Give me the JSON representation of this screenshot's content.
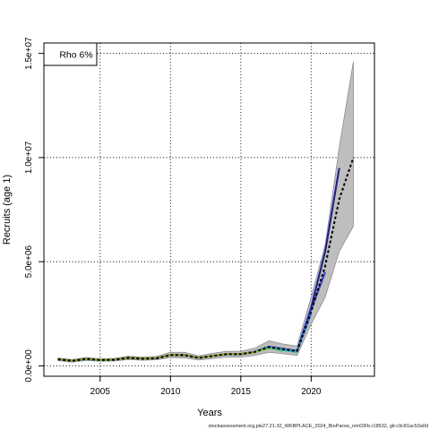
{
  "chart_data": {
    "type": "line",
    "xlabel": "Years",
    "ylabel": "Recruits (age 1)",
    "xlim": [
      2001,
      2024.5
    ],
    "ylim": [
      -500000,
      15500000
    ],
    "x_ticks": [
      2005,
      2010,
      2015,
      2020
    ],
    "x_tick_labels": [
      "2005",
      "2010",
      "2015",
      "2020"
    ],
    "y_ticks": [
      0,
      5000000,
      10000000,
      15000000
    ],
    "y_tick_labels": [
      "0.0e+00",
      "5.0e+06",
      "1.0e+07",
      "1.5e+07"
    ],
    "grid": true,
    "legend_text": "Rho 6%",
    "legend_position": "top-left",
    "footer_text": "stockassessment.org,ple27.21-32_WKBPLACE_2024_BioParsw_nm02Fb,r18532, git:c9c81ac53a0d",
    "colors": {
      "band": "#bebebe",
      "band_edge": "#8c8c8c",
      "base": "#000000",
      "peels": [
        "#1a1a8a",
        "#3b3bd0",
        "#2b8ad6",
        "#22b8b0",
        "#3cb878",
        "#8bc34a",
        "#a0a020"
      ]
    },
    "confidence_band": {
      "x": [
        2002,
        2003,
        2004,
        2005,
        2006,
        2007,
        2008,
        2009,
        2010,
        2011,
        2012,
        2013,
        2014,
        2015,
        2016,
        2017,
        2018,
        2019,
        2020,
        2021,
        2022,
        2023
      ],
      "lower": [
        250000,
        180000,
        260000,
        220000,
        230000,
        300000,
        270000,
        290000,
        400000,
        380000,
        280000,
        350000,
        420000,
        420000,
        500000,
        650000,
        580000,
        500000,
        2000000,
        3300000,
        5500000,
        6700000
      ],
      "upper": [
        380000,
        300000,
        400000,
        340000,
        360000,
        460000,
        420000,
        450000,
        650000,
        650000,
        480000,
        600000,
        700000,
        700000,
        850000,
        1200000,
        1050000,
        950000,
        3300000,
        5800000,
        10500000,
        14600000
      ]
    },
    "base_series": {
      "name": "",
      "x": [
        2002,
        2003,
        2004,
        2005,
        2006,
        2007,
        2008,
        2009,
        2010,
        2011,
        2012,
        2013,
        2014,
        2015,
        2016,
        2017,
        2018,
        2019,
        2020,
        2021,
        2022,
        2023
      ],
      "values": [
        310000,
        240000,
        330000,
        280000,
        290000,
        380000,
        340000,
        360000,
        520000,
        510000,
        380000,
        470000,
        560000,
        560000,
        670000,
        900000,
        800000,
        700000,
        2600000,
        4800000,
        8000000,
        10000000
      ]
    },
    "series": [
      {
        "name": "",
        "x": [
          2002,
          2003,
          2004,
          2005,
          2006,
          2007,
          2008,
          2009,
          2010,
          2011,
          2012,
          2013,
          2014,
          2015,
          2016,
          2017,
          2018,
          2019,
          2020,
          2021,
          2022
        ],
        "values": [
          320000,
          250000,
          340000,
          290000,
          300000,
          390000,
          350000,
          370000,
          530000,
          520000,
          390000,
          480000,
          570000,
          570000,
          680000,
          920000,
          820000,
          720000,
          2800000,
          5500000,
          9500000
        ]
      },
      {
        "name": "",
        "x": [
          2002,
          2003,
          2004,
          2005,
          2006,
          2007,
          2008,
          2009,
          2010,
          2011,
          2012,
          2013,
          2014,
          2015,
          2016,
          2017,
          2018,
          2019,
          2020,
          2021
        ],
        "values": [
          315000,
          245000,
          335000,
          285000,
          295000,
          385000,
          345000,
          365000,
          525000,
          515000,
          385000,
          475000,
          565000,
          565000,
          675000,
          910000,
          810000,
          710000,
          2700000,
          4500000
        ]
      },
      {
        "name": "",
        "x": [
          2002,
          2003,
          2004,
          2005,
          2006,
          2007,
          2008,
          2009,
          2010,
          2011,
          2012,
          2013,
          2014,
          2015,
          2016,
          2017,
          2018,
          2019,
          2020
        ],
        "values": [
          300000,
          235000,
          325000,
          275000,
          285000,
          375000,
          335000,
          355000,
          510000,
          500000,
          375000,
          465000,
          550000,
          550000,
          660000,
          880000,
          790000,
          690000,
          2500000
        ]
      },
      {
        "name": "",
        "x": [
          2002,
          2003,
          2004,
          2005,
          2006,
          2007,
          2008,
          2009,
          2010,
          2011,
          2012,
          2013,
          2014,
          2015,
          2016,
          2017,
          2018,
          2019
        ],
        "values": [
          305000,
          238000,
          328000,
          278000,
          288000,
          378000,
          338000,
          358000,
          515000,
          505000,
          378000,
          468000,
          555000,
          555000,
          665000,
          890000,
          760000,
          660000
        ]
      },
      {
        "name": "",
        "x": [
          2002,
          2003,
          2004,
          2005,
          2006,
          2007,
          2008,
          2009,
          2010,
          2011,
          2012,
          2013,
          2014,
          2015,
          2016,
          2017,
          2018
        ],
        "values": [
          308000,
          242000,
          332000,
          282000,
          292000,
          382000,
          342000,
          362000,
          518000,
          508000,
          382000,
          472000,
          558000,
          558000,
          668000,
          870000,
          720000
        ]
      },
      {
        "name": "",
        "x": [
          2002,
          2003,
          2004,
          2005,
          2006,
          2007,
          2008,
          2009,
          2010,
          2011,
          2012,
          2013,
          2014,
          2015,
          2016,
          2017
        ],
        "values": [
          312000,
          244000,
          334000,
          284000,
          294000,
          384000,
          344000,
          364000,
          522000,
          512000,
          384000,
          474000,
          562000,
          562000,
          672000,
          820000
        ]
      },
      {
        "name": "",
        "x": [
          2002,
          2003,
          2004,
          2005,
          2006,
          2007,
          2008,
          2009,
          2010,
          2011,
          2012,
          2013,
          2014,
          2015,
          2016
        ],
        "values": [
          318000,
          248000,
          338000,
          288000,
          298000,
          388000,
          348000,
          368000,
          528000,
          518000,
          388000,
          478000,
          568000,
          568000,
          640000
        ]
      }
    ]
  }
}
